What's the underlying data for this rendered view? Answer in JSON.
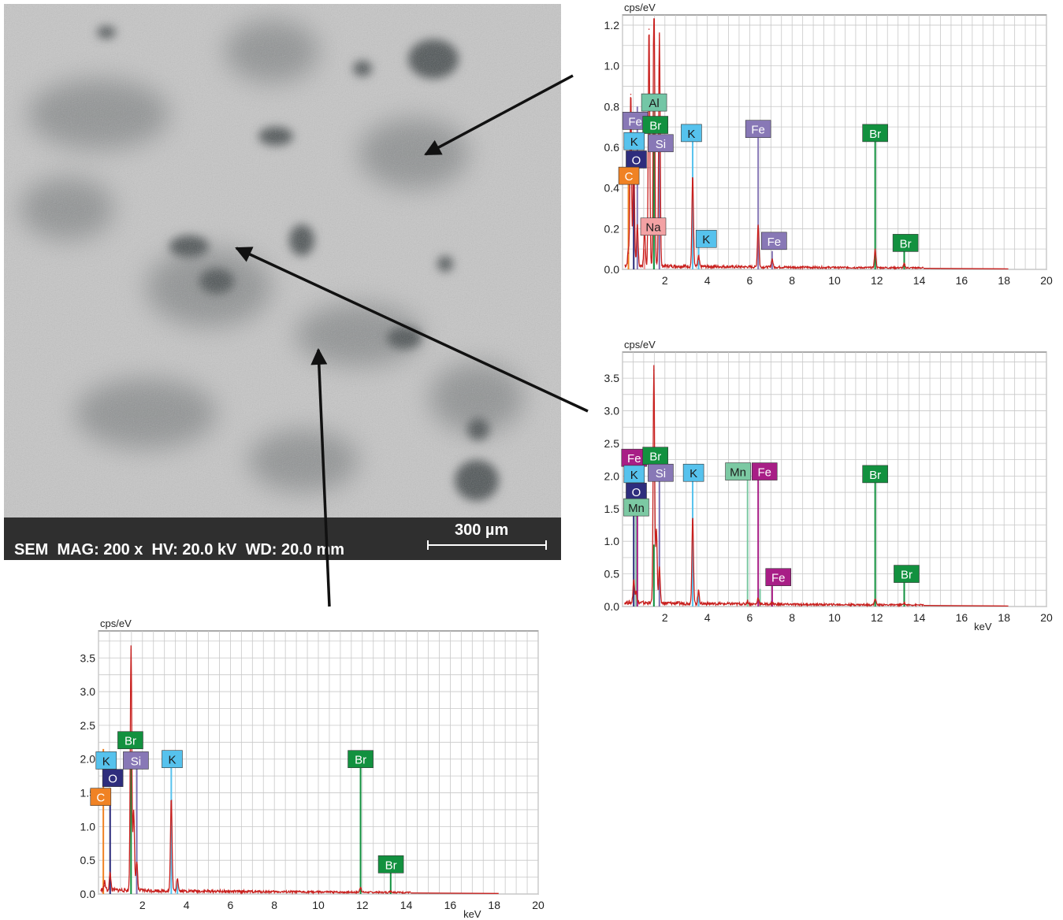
{
  "sem": {
    "info": "SEM  MAG: 200 x  HV: 20.0 kV  WD: 20.0 mm",
    "scale_label": "300 µm"
  },
  "colors": {
    "spectrum": "#c8201e",
    "grid": "#c8c8c8",
    "C": "#f08224",
    "O": "#2e2d7d",
    "K": "#56c2ed",
    "Fe": "#8878b6",
    "Fe_magenta": "#a81e86",
    "Br": "#12913f",
    "Si": "#7b6fb0",
    "Al": "#73c6a6",
    "Na": "#f3a2a4",
    "Mn": "#7cc9a3"
  },
  "chart_data": [
    {
      "type": "line",
      "ylabel": "cps/eV",
      "xlabel": "",
      "xlim": [
        0,
        20
      ],
      "ylim": [
        0,
        1.25
      ],
      "x_ticks": [
        2,
        4,
        6,
        8,
        10,
        12,
        14,
        16,
        18,
        20
      ],
      "x_tick_labels": [
        "2",
        "4",
        "6",
        "8",
        "10",
        "12",
        "14",
        "16",
        "18",
        "20"
      ],
      "y_ticks": [
        0.0,
        0.2,
        0.4,
        0.6,
        0.8,
        1.0,
        1.2
      ],
      "y_tick_labels": [
        "0.0",
        "0.2",
        "0.4",
        "0.6",
        "0.8",
        "1.0",
        "1.2"
      ],
      "grid": true,
      "peaks": [
        {
          "x": 0.28,
          "y": 0.08
        },
        {
          "x": 0.39,
          "y": 0.86
        },
        {
          "x": 0.53,
          "y": 0.55
        },
        {
          "x": 0.7,
          "y": 0.2
        },
        {
          "x": 1.04,
          "y": 0.17
        },
        {
          "x": 1.25,
          "y": 1.18
        },
        {
          "x": 1.49,
          "y": 0.84
        },
        {
          "x": 1.74,
          "y": 1.15
        },
        {
          "x": 1.48,
          "y": 0.6
        },
        {
          "x": 3.31,
          "y": 0.45
        },
        {
          "x": 3.59,
          "y": 0.05
        },
        {
          "x": 6.4,
          "y": 0.21
        },
        {
          "x": 7.06,
          "y": 0.04
        },
        {
          "x": 11.92,
          "y": 0.09
        },
        {
          "x": 13.29,
          "y": 0.02
        }
      ],
      "element_lines": [
        {
          "x": 0.28,
          "height": 0.45,
          "color": "C"
        },
        {
          "x": 0.53,
          "height": 0.55,
          "color": "O"
        },
        {
          "x": 0.7,
          "height": 0.8,
          "color": "Fe"
        },
        {
          "x": 1.04,
          "height": 0.1,
          "color": "Na"
        },
        {
          "x": 1.49,
          "height": 0.84,
          "color": "Al"
        },
        {
          "x": 1.48,
          "height": 0.6,
          "color": "Br"
        },
        {
          "x": 1.74,
          "height": 0.6,
          "color": "Si"
        },
        {
          "x": 3.31,
          "height": 0.66,
          "color": "K"
        },
        {
          "x": 3.59,
          "height": 0.12,
          "color": "K"
        },
        {
          "x": 6.4,
          "height": 0.68,
          "color": "Fe"
        },
        {
          "x": 7.06,
          "height": 0.09,
          "color": "Fe"
        },
        {
          "x": 11.92,
          "height": 0.66,
          "color": "Br"
        },
        {
          "x": 13.29,
          "height": 0.09,
          "color": "Br"
        }
      ],
      "labels": [
        {
          "text": "Al",
          "x": 1.49,
          "y": 0.82,
          "color": "Al",
          "dark": true
        },
        {
          "text": "Fe",
          "x": 0.6,
          "y": 0.73,
          "color": "Fe"
        },
        {
          "text": "Br",
          "x": 1.55,
          "y": 0.71,
          "color": "Br"
        },
        {
          "text": "K",
          "x": 0.55,
          "y": 0.63,
          "color": "K",
          "dark": true
        },
        {
          "text": "Si",
          "x": 1.8,
          "y": 0.62,
          "color": "Fe"
        },
        {
          "text": "O",
          "x": 0.65,
          "y": 0.54,
          "color": "O"
        },
        {
          "text": "C",
          "x": 0.3,
          "y": 0.46,
          "color": "C"
        },
        {
          "text": "Na",
          "x": 1.45,
          "y": 0.21,
          "color": "Na",
          "dark": true
        },
        {
          "text": "K",
          "x": 3.25,
          "y": 0.67,
          "color": "K",
          "dark": true
        },
        {
          "text": "Fe",
          "x": 6.4,
          "y": 0.69,
          "color": "Fe"
        },
        {
          "text": "K",
          "x": 3.95,
          "y": 0.15,
          "color": "K",
          "dark": true
        },
        {
          "text": "Fe",
          "x": 7.15,
          "y": 0.14,
          "color": "Fe"
        },
        {
          "text": "Br",
          "x": 11.92,
          "y": 0.67,
          "color": "Br"
        },
        {
          "text": "Br",
          "x": 13.35,
          "y": 0.13,
          "color": "Br"
        }
      ]
    },
    {
      "type": "line",
      "ylabel": "cps/eV",
      "xlabel": "keV",
      "xlim": [
        0,
        20
      ],
      "ylim": [
        0,
        3.9
      ],
      "x_ticks": [
        2,
        4,
        6,
        8,
        10,
        12,
        14,
        16,
        18,
        20
      ],
      "x_tick_labels": [
        "2",
        "4",
        "6",
        "8",
        "10",
        "12",
        "14",
        "16",
        "18",
        "20"
      ],
      "y_ticks": [
        0.0,
        0.5,
        1.0,
        1.5,
        2.0,
        2.5,
        3.0,
        3.5
      ],
      "y_tick_labels": [
        "0.0",
        "0.5",
        "1.0",
        "1.5",
        "2.0",
        "2.5",
        "3.0",
        "3.5"
      ],
      "grid": true,
      "peaks": [
        {
          "x": 0.53,
          "y": 0.35
        },
        {
          "x": 0.64,
          "y": 0.2
        },
        {
          "x": 1.48,
          "y": 3.62
        },
        {
          "x": 1.6,
          "y": 1.15
        },
        {
          "x": 1.74,
          "y": 0.55
        },
        {
          "x": 3.31,
          "y": 1.35
        },
        {
          "x": 3.59,
          "y": 0.2
        },
        {
          "x": 5.9,
          "y": 0.05
        },
        {
          "x": 6.4,
          "y": 0.1
        },
        {
          "x": 7.06,
          "y": 0.03
        },
        {
          "x": 11.92,
          "y": 0.1
        },
        {
          "x": 13.29,
          "y": 0.04
        }
      ],
      "element_lines": [
        {
          "x": 0.53,
          "height": 1.75,
          "color": "O"
        },
        {
          "x": 0.64,
          "height": 1.4,
          "color": "Mn"
        },
        {
          "x": 0.7,
          "height": 2.05,
          "color": "Fe_magenta"
        },
        {
          "x": 1.48,
          "height": 0.95,
          "color": "Br"
        },
        {
          "x": 1.74,
          "height": 2.0,
          "color": "Si"
        },
        {
          "x": 3.31,
          "height": 1.98,
          "color": "K"
        },
        {
          "x": 3.59,
          "height": 0.22,
          "color": "K"
        },
        {
          "x": 5.9,
          "height": 2.05,
          "color": "Mn"
        },
        {
          "x": 6.4,
          "height": 2.05,
          "color": "Fe_magenta"
        },
        {
          "x": 6.49,
          "height": 0.27,
          "color": "Mn"
        },
        {
          "x": 7.06,
          "height": 0.35,
          "color": "Fe_magenta"
        },
        {
          "x": 11.92,
          "height": 1.95,
          "color": "Br"
        },
        {
          "x": 13.29,
          "height": 0.4,
          "color": "Br"
        }
      ],
      "labels": [
        {
          "text": "Fe",
          "x": 0.55,
          "y": 2.28,
          "color": "Fe_magenta"
        },
        {
          "text": "Br",
          "x": 1.55,
          "y": 2.31,
          "color": "Br"
        },
        {
          "text": "K",
          "x": 0.55,
          "y": 2.03,
          "color": "K",
          "dark": true
        },
        {
          "text": "Si",
          "x": 1.8,
          "y": 2.05,
          "color": "Fe"
        },
        {
          "text": "O",
          "x": 0.65,
          "y": 1.76,
          "color": "O"
        },
        {
          "text": "Mn",
          "x": 0.65,
          "y": 1.52,
          "color": "Mn",
          "dark": true
        },
        {
          "text": "K",
          "x": 3.35,
          "y": 2.05,
          "color": "K",
          "dark": true
        },
        {
          "text": "Mn",
          "x": 5.45,
          "y": 2.07,
          "color": "Mn",
          "dark": true
        },
        {
          "text": "Fe",
          "x": 6.7,
          "y": 2.07,
          "color": "Fe_magenta"
        },
        {
          "text": "Fe",
          "x": 7.35,
          "y": 0.45,
          "color": "Fe_magenta"
        },
        {
          "text": "Br",
          "x": 11.92,
          "y": 2.03,
          "color": "Br"
        },
        {
          "text": "Br",
          "x": 13.4,
          "y": 0.5,
          "color": "Br"
        }
      ]
    },
    {
      "type": "line",
      "ylabel": "cps/eV",
      "xlabel": "keV",
      "xlim": [
        0,
        20
      ],
      "ylim": [
        0,
        3.9
      ],
      "x_ticks": [
        2,
        4,
        6,
        8,
        10,
        12,
        14,
        16,
        18,
        20
      ],
      "x_tick_labels": [
        "2",
        "4",
        "6",
        "8",
        "10",
        "12",
        "14",
        "16",
        "18",
        "20"
      ],
      "y_ticks": [
        0.0,
        0.5,
        1.0,
        1.5,
        2.0,
        2.5,
        3.0,
        3.5
      ],
      "y_tick_labels": [
        "0.0",
        "0.5",
        "1.0",
        "1.5",
        "2.0",
        "2.5",
        "3.0",
        "3.5"
      ],
      "grid": true,
      "peaks": [
        {
          "x": 0.28,
          "y": 0.12
        },
        {
          "x": 0.53,
          "y": 0.25
        },
        {
          "x": 1.48,
          "y": 3.62
        },
        {
          "x": 1.6,
          "y": 1.2
        },
        {
          "x": 1.74,
          "y": 0.45
        },
        {
          "x": 3.31,
          "y": 1.38
        },
        {
          "x": 3.59,
          "y": 0.2
        },
        {
          "x": 11.92,
          "y": 0.08
        },
        {
          "x": 13.29,
          "y": 0.03
        }
      ],
      "element_lines": [
        {
          "x": 0.22,
          "height": 2.15,
          "color": "C"
        },
        {
          "x": 0.53,
          "height": 1.5,
          "color": "O"
        },
        {
          "x": 1.48,
          "height": 2.0,
          "color": "Br"
        },
        {
          "x": 1.74,
          "height": 2.0,
          "color": "Si"
        },
        {
          "x": 3.31,
          "height": 1.95,
          "color": "K"
        },
        {
          "x": 3.59,
          "height": 0.2,
          "color": "K"
        },
        {
          "x": 11.92,
          "height": 1.98,
          "color": "Br"
        },
        {
          "x": 13.29,
          "height": 0.4,
          "color": "Br"
        }
      ],
      "labels": [
        {
          "text": "Br",
          "x": 1.45,
          "y": 2.28,
          "color": "Br"
        },
        {
          "text": "K",
          "x": 0.35,
          "y": 1.98,
          "color": "K",
          "dark": true
        },
        {
          "text": "Si",
          "x": 1.7,
          "y": 1.98,
          "color": "Fe"
        },
        {
          "text": "O",
          "x": 0.65,
          "y": 1.72,
          "color": "O"
        },
        {
          "text": "C",
          "x": 0.1,
          "y": 1.44,
          "color": "C"
        },
        {
          "text": "K",
          "x": 3.35,
          "y": 2.0,
          "color": "K",
          "dark": true
        },
        {
          "text": "Br",
          "x": 11.92,
          "y": 2.0,
          "color": "Br"
        },
        {
          "text": "Br",
          "x": 13.3,
          "y": 0.44,
          "color": "Br"
        }
      ]
    }
  ]
}
